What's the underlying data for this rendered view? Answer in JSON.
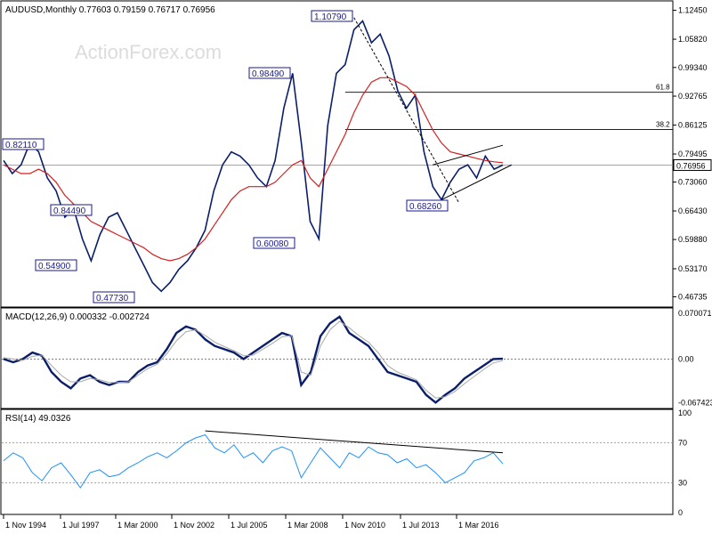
{
  "chart_data": {
    "type": "line",
    "platform": "MetaTrader",
    "watermark": "ActionForex.com",
    "price_panel": {
      "header": "AUDUSD,Monthly  0.77603 0.79159 0.76717 0.76956",
      "axis_ticks": [
        "1.12450",
        "1.05820",
        "0.99340",
        "0.92765",
        "0.86125",
        "0.79495",
        "0.73060",
        "0.66430",
        "0.59880",
        "0.53170",
        "0.46735"
      ],
      "current_price_label": "0.76956",
      "current_price": 0.76956,
      "ylim": [
        0.45,
        1.14
      ],
      "fib_levels": [
        {
          "label": "61.8",
          "value": 0.9365
        },
        {
          "label": "38.2",
          "value": 0.851
        }
      ],
      "annotations": [
        {
          "label": "0.82110",
          "value": 0.8211
        },
        {
          "label": "0.84490",
          "value": 0.8449
        },
        {
          "label": "0.54900",
          "value": 0.549
        },
        {
          "label": "0.47730",
          "value": 0.4773
        },
        {
          "label": "0.98490",
          "value": 0.9849
        },
        {
          "label": "0.60080",
          "value": 0.6008
        },
        {
          "label": "1.10790",
          "value": 1.1079
        },
        {
          "label": "0.68260",
          "value": 0.6826
        }
      ],
      "series": [
        {
          "name": "price",
          "color": "#0b1e6b",
          "values": [
            0.78,
            0.75,
            0.77,
            0.82,
            0.8,
            0.74,
            0.71,
            0.65,
            0.67,
            0.6,
            0.55,
            0.61,
            0.65,
            0.66,
            0.62,
            0.58,
            0.54,
            0.5,
            0.48,
            0.5,
            0.53,
            0.55,
            0.58,
            0.62,
            0.71,
            0.77,
            0.8,
            0.79,
            0.77,
            0.74,
            0.72,
            0.78,
            0.9,
            0.98,
            0.82,
            0.64,
            0.6,
            0.86,
            0.98,
            1.0,
            1.08,
            1.1,
            1.05,
            1.07,
            1.02,
            0.94,
            0.9,
            0.93,
            0.8,
            0.72,
            0.69,
            0.73,
            0.76,
            0.77,
            0.74,
            0.79,
            0.76,
            0.7696
          ]
        },
        {
          "name": "ma",
          "color": "#d42020",
          "values": [
            0.77,
            0.76,
            0.75,
            0.75,
            0.76,
            0.75,
            0.73,
            0.7,
            0.68,
            0.66,
            0.64,
            0.63,
            0.62,
            0.61,
            0.6,
            0.59,
            0.58,
            0.565,
            0.555,
            0.55,
            0.555,
            0.565,
            0.58,
            0.6,
            0.63,
            0.66,
            0.69,
            0.71,
            0.72,
            0.72,
            0.72,
            0.73,
            0.75,
            0.77,
            0.78,
            0.74,
            0.72,
            0.76,
            0.8,
            0.84,
            0.89,
            0.93,
            0.96,
            0.97,
            0.97,
            0.96,
            0.95,
            0.93,
            0.89,
            0.85,
            0.82,
            0.8,
            0.795,
            0.79,
            0.785,
            0.78,
            0.777,
            0.775
          ]
        }
      ],
      "trend_line": {
        "from": [
          40,
          1.1079
        ],
        "to": [
          52,
          0.6826
        ]
      },
      "channel_upper": {
        "from": [
          49,
          0.77
        ],
        "to": [
          57,
          0.815
        ]
      },
      "channel_lower": {
        "from": [
          50,
          0.69
        ],
        "to": [
          58,
          0.77
        ]
      },
      "fib_start_index": 39
    },
    "macd_panel": {
      "header": "MACD(12,26,9) 0.000332 -0.002724",
      "axis_ticks": [
        "0.070071",
        "0.00",
        "-0.067423"
      ],
      "ylim": [
        -0.072,
        0.073
      ],
      "series": [
        {
          "name": "MACD",
          "color": "#0b1e6b",
          "values": [
            0.0,
            -0.005,
            0.0,
            0.01,
            0.005,
            -0.02,
            -0.035,
            -0.045,
            -0.03,
            -0.025,
            -0.035,
            -0.04,
            -0.035,
            -0.035,
            -0.02,
            -0.01,
            -0.005,
            0.015,
            0.04,
            0.05,
            0.045,
            0.03,
            0.02,
            0.015,
            0.01,
            0.0,
            0.01,
            0.02,
            0.03,
            0.04,
            0.035,
            -0.04,
            -0.02,
            0.035,
            0.055,
            0.065,
            0.04,
            0.03,
            0.02,
            0.0,
            -0.02,
            -0.025,
            -0.03,
            -0.035,
            -0.055,
            -0.067,
            -0.055,
            -0.045,
            -0.03,
            -0.02,
            -0.01,
            0.0,
            0.0003
          ]
        },
        {
          "name": "signal",
          "color": "#a8a8a8",
          "values": [
            0.002,
            0.0,
            -0.002,
            0.004,
            0.006,
            -0.01,
            -0.025,
            -0.035,
            -0.035,
            -0.03,
            -0.032,
            -0.036,
            -0.036,
            -0.035,
            -0.025,
            -0.015,
            -0.008,
            0.008,
            0.028,
            0.042,
            0.045,
            0.036,
            0.026,
            0.019,
            0.013,
            0.005,
            0.006,
            0.015,
            0.024,
            0.034,
            0.036,
            -0.02,
            -0.025,
            0.02,
            0.045,
            0.058,
            0.048,
            0.036,
            0.026,
            0.01,
            -0.01,
            -0.02,
            -0.026,
            -0.032,
            -0.048,
            -0.06,
            -0.058,
            -0.05,
            -0.038,
            -0.027,
            -0.016,
            -0.006,
            -0.0027
          ]
        }
      ]
    },
    "rsi_panel": {
      "header": "RSI(14) 49.0326",
      "axis_ticks": [
        "100",
        "70",
        "30",
        "0"
      ],
      "levels": [
        70,
        30
      ],
      "ylim": [
        0,
        100
      ],
      "series": [
        {
          "name": "RSI",
          "color": "#1e90ff",
          "values": [
            52,
            60,
            55,
            40,
            32,
            45,
            50,
            38,
            25,
            40,
            43,
            36,
            38,
            45,
            50,
            56,
            60,
            55,
            62,
            70,
            75,
            78,
            65,
            60,
            68,
            55,
            60,
            50,
            62,
            66,
            62,
            35,
            50,
            65,
            55,
            45,
            60,
            55,
            66,
            60,
            58,
            50,
            54,
            45,
            48,
            40,
            30,
            35,
            40,
            52,
            55,
            60,
            49
          ]
        }
      ],
      "trend_line": {
        "from": [
          21,
          82
        ],
        "to": [
          52,
          60
        ]
      }
    },
    "x_axis": {
      "tick_labels": [
        "1 Nov 1994",
        "1 Jul 1997",
        "1 Mar 2000",
        "1 Nov 2002",
        "1 Jul 2005",
        "1 Mar 2008",
        "1 Nov 2010",
        "1 Jul 2013",
        "1 Mar 2016"
      ]
    }
  }
}
